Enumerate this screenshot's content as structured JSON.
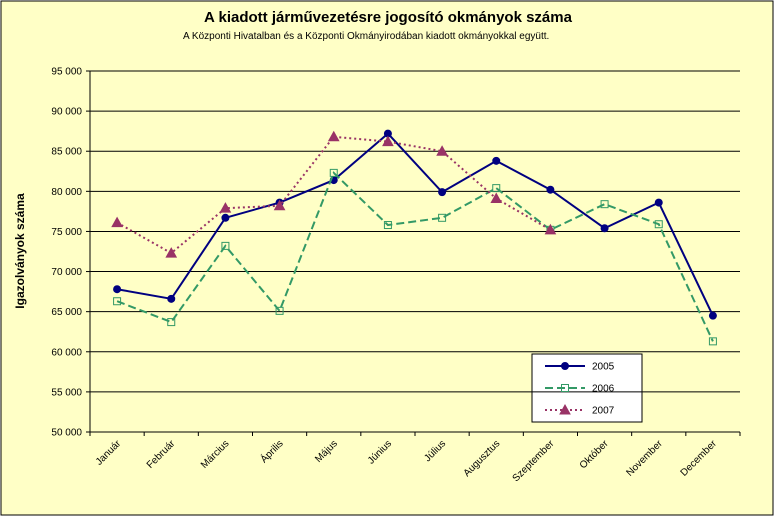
{
  "chart_data": {
    "type": "line",
    "title": "A  kiadott járművezetésre  jogosító okmányok száma",
    "subtitle": "A  Központi Hivatalban és a Központi Okmányirodában kiadott okmányokkal együtt.",
    "y_label": "Igazolványok száma",
    "categories": [
      "Január",
      "Február",
      "Március",
      "Április",
      "Május",
      "Június",
      "Július",
      "Augusztus",
      "Szeptember",
      "Október",
      "November",
      "December"
    ],
    "series": [
      {
        "name": "2005",
        "color": "#000080",
        "values": [
          67800,
          66600,
          76700,
          78600,
          81400,
          87200,
          79900,
          83800,
          80200,
          75400,
          78600,
          64500
        ]
      },
      {
        "name": "2006",
        "color": "#339966",
        "values": [
          66300,
          63700,
          73200,
          65100,
          82300,
          75800,
          76700,
          80400,
          75200,
          78400,
          75900,
          61300
        ]
      },
      {
        "name": "2007",
        "color": "#993366",
        "values": [
          76100,
          72300,
          77900,
          78200,
          86800,
          86200,
          85000,
          79100,
          75200,
          null,
          null,
          null
        ]
      }
    ],
    "ylim": [
      50000,
      95000
    ],
    "yticks": [
      {
        "value": 50000,
        "label": "50 000"
      },
      {
        "value": 55000,
        "label": "55 000"
      },
      {
        "value": 60000,
        "label": "60 000"
      },
      {
        "value": 65000,
        "label": "65 000"
      },
      {
        "value": 70000,
        "label": "70 000"
      },
      {
        "value": 75000,
        "label": "75 000"
      },
      {
        "value": 80000,
        "label": "80 000"
      },
      {
        "value": 85000,
        "label": "85 000"
      },
      {
        "value": 90000,
        "label": "90 000"
      },
      {
        "value": 95000,
        "label": "95 000"
      }
    ],
    "grid": true,
    "legend": "lower right"
  }
}
